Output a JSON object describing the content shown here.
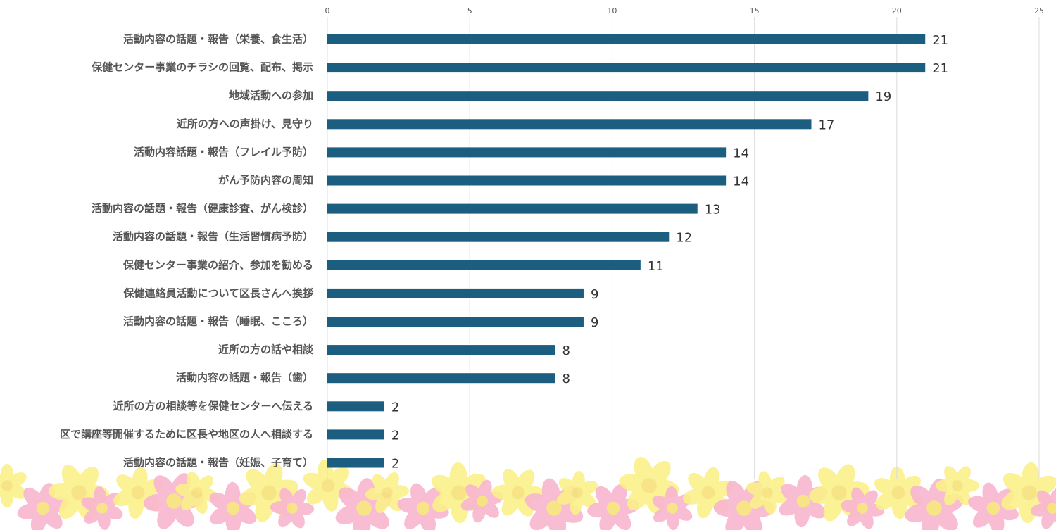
{
  "chart_data": {
    "type": "bar",
    "orientation": "horizontal",
    "categories": [
      "活動内容の話題・報告（栄養、食生活）",
      "保健センター事業のチラシの回覧、配布、掲示",
      "地域活動への参加",
      "近所の方への声掛け、見守り",
      "活動内容話題・報告（フレイル予防）",
      "がん予防内容の周知",
      "活動内容の話題・報告（健康診査、がん検診）",
      "活動内容の話題・報告（生活習慣病予防）",
      "保健センター事業の紹介、参加を勧める",
      "保健連絡員活動について区長さんへ挨拶",
      "活動内容の話題・報告（睡眠、こころ）",
      "近所の方の話や相談",
      "活動内容の話題・報告（歯）",
      "近所の方の相談等を保健センターへ伝える",
      "区で講座等開催するために区長や地区の人へ相談する",
      "活動内容の話題・報告（妊娠、子育て）"
    ],
    "values": [
      21,
      21,
      19,
      17,
      14,
      14,
      13,
      12,
      11,
      9,
      9,
      8,
      8,
      2,
      2,
      2
    ],
    "color": "#1b5e80",
    "xlim": [
      0,
      25
    ],
    "xticks": [
      0,
      5,
      10,
      15,
      20,
      25
    ],
    "grid": true
  }
}
